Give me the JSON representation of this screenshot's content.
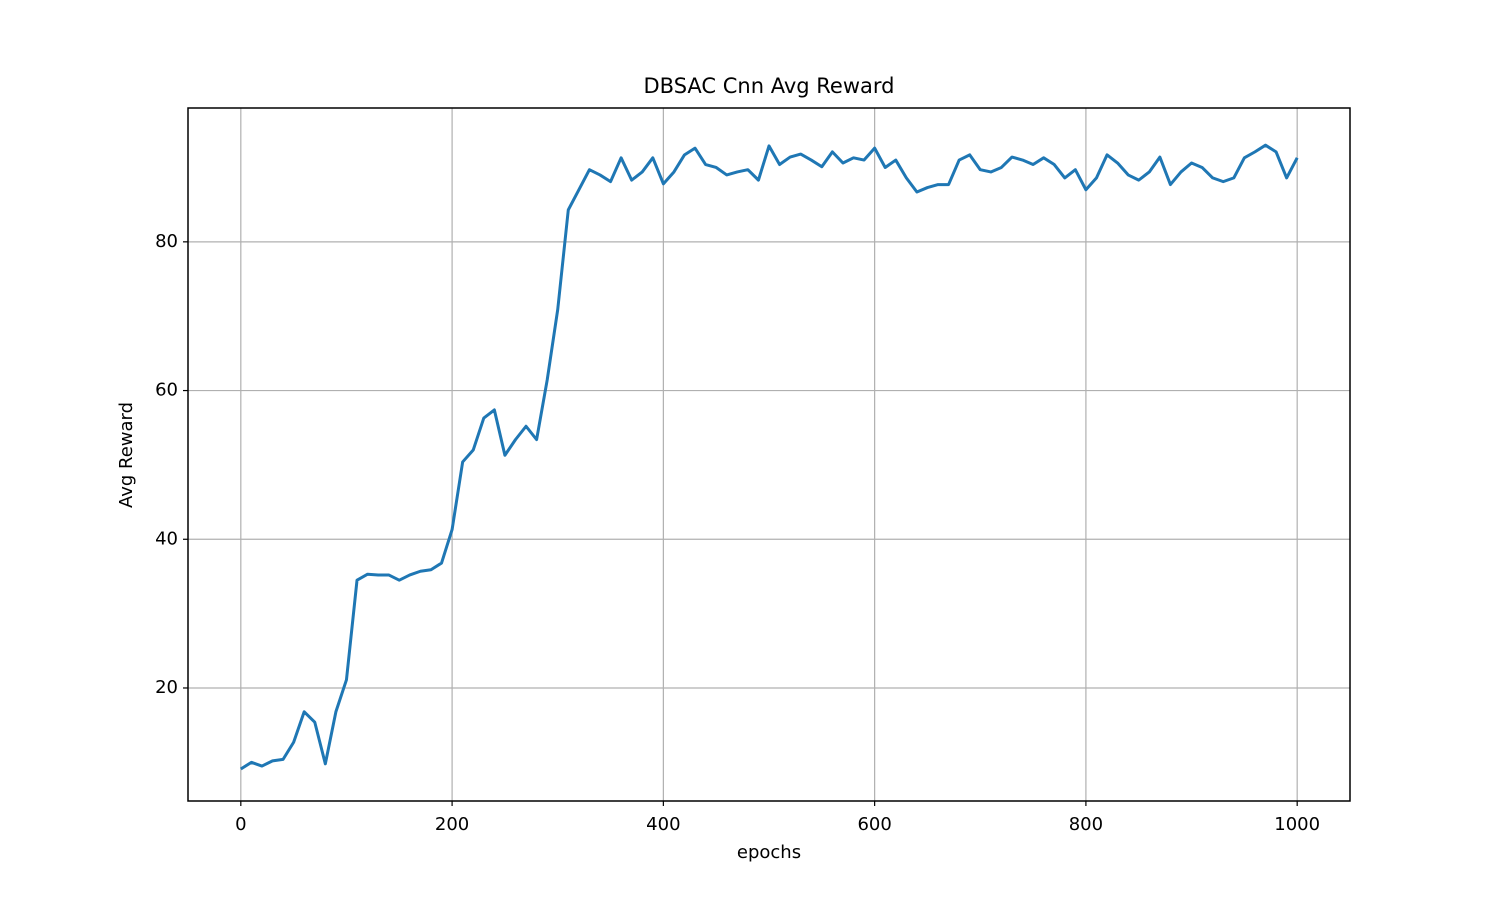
{
  "chart_data": {
    "type": "line",
    "title": "DBSAC Cnn Avg Reward",
    "xlabel": "epochs",
    "ylabel": "Avg Reward",
    "x": [
      0,
      10,
      20,
      30,
      40,
      50,
      60,
      70,
      80,
      90,
      100,
      110,
      120,
      130,
      140,
      150,
      160,
      170,
      180,
      190,
      200,
      210,
      220,
      230,
      240,
      250,
      260,
      270,
      280,
      290,
      300,
      310,
      320,
      330,
      340,
      350,
      360,
      370,
      380,
      390,
      400,
      410,
      420,
      430,
      440,
      450,
      460,
      470,
      480,
      490,
      500,
      510,
      520,
      530,
      540,
      550,
      560,
      570,
      580,
      590,
      600,
      610,
      620,
      630,
      640,
      650,
      660,
      670,
      680,
      690,
      700,
      710,
      720,
      730,
      740,
      750,
      760,
      770,
      780,
      790,
      800,
      810,
      820,
      830,
      840,
      850,
      860,
      870,
      880,
      890,
      900,
      910,
      920,
      930,
      940,
      950,
      960,
      970,
      980,
      990,
      1000
    ],
    "series": [
      {
        "name": "Avg Reward",
        "color": "#1f77b4",
        "values": [
          9.1,
          10.0,
          9.5,
          10.2,
          10.4,
          12.7,
          16.8,
          15.4,
          9.8,
          16.8,
          21.1,
          34.5,
          35.3,
          35.2,
          35.2,
          34.5,
          35.2,
          35.7,
          35.9,
          36.8,
          41.3,
          50.4,
          52.0,
          56.3,
          57.4,
          51.3,
          53.4,
          55.2,
          53.4,
          61.4,
          70.9,
          84.3,
          87.0,
          89.7,
          89.0,
          88.1,
          91.3,
          88.3,
          89.4,
          91.3,
          87.8,
          89.4,
          91.7,
          92.6,
          90.4,
          90.0,
          89.0,
          89.4,
          89.7,
          88.3,
          92.9,
          90.4,
          91.4,
          91.8,
          91.0,
          90.1,
          92.1,
          90.6,
          91.3,
          91.0,
          92.6,
          90.0,
          91.0,
          88.6,
          86.7,
          87.3,
          87.7,
          87.7,
          91.0,
          91.7,
          89.7,
          89.4,
          90.0,
          91.4,
          91.0,
          90.4,
          91.3,
          90.4,
          88.6,
          89.7,
          87.0,
          88.6,
          91.7,
          90.6,
          89.0,
          88.3,
          89.4,
          91.4,
          87.7,
          89.4,
          90.6,
          90.0,
          88.6,
          88.1,
          88.6,
          91.3,
          92.1,
          93.0,
          92.1,
          88.6,
          91.3
        ]
      }
    ],
    "xlim": [
      -50,
      1050
    ],
    "xticks": [
      0,
      200,
      400,
      600,
      800,
      1000
    ],
    "ylim": [
      4.8,
      98.0
    ],
    "yticks": [
      20,
      40,
      60,
      80
    ],
    "grid": true
  }
}
